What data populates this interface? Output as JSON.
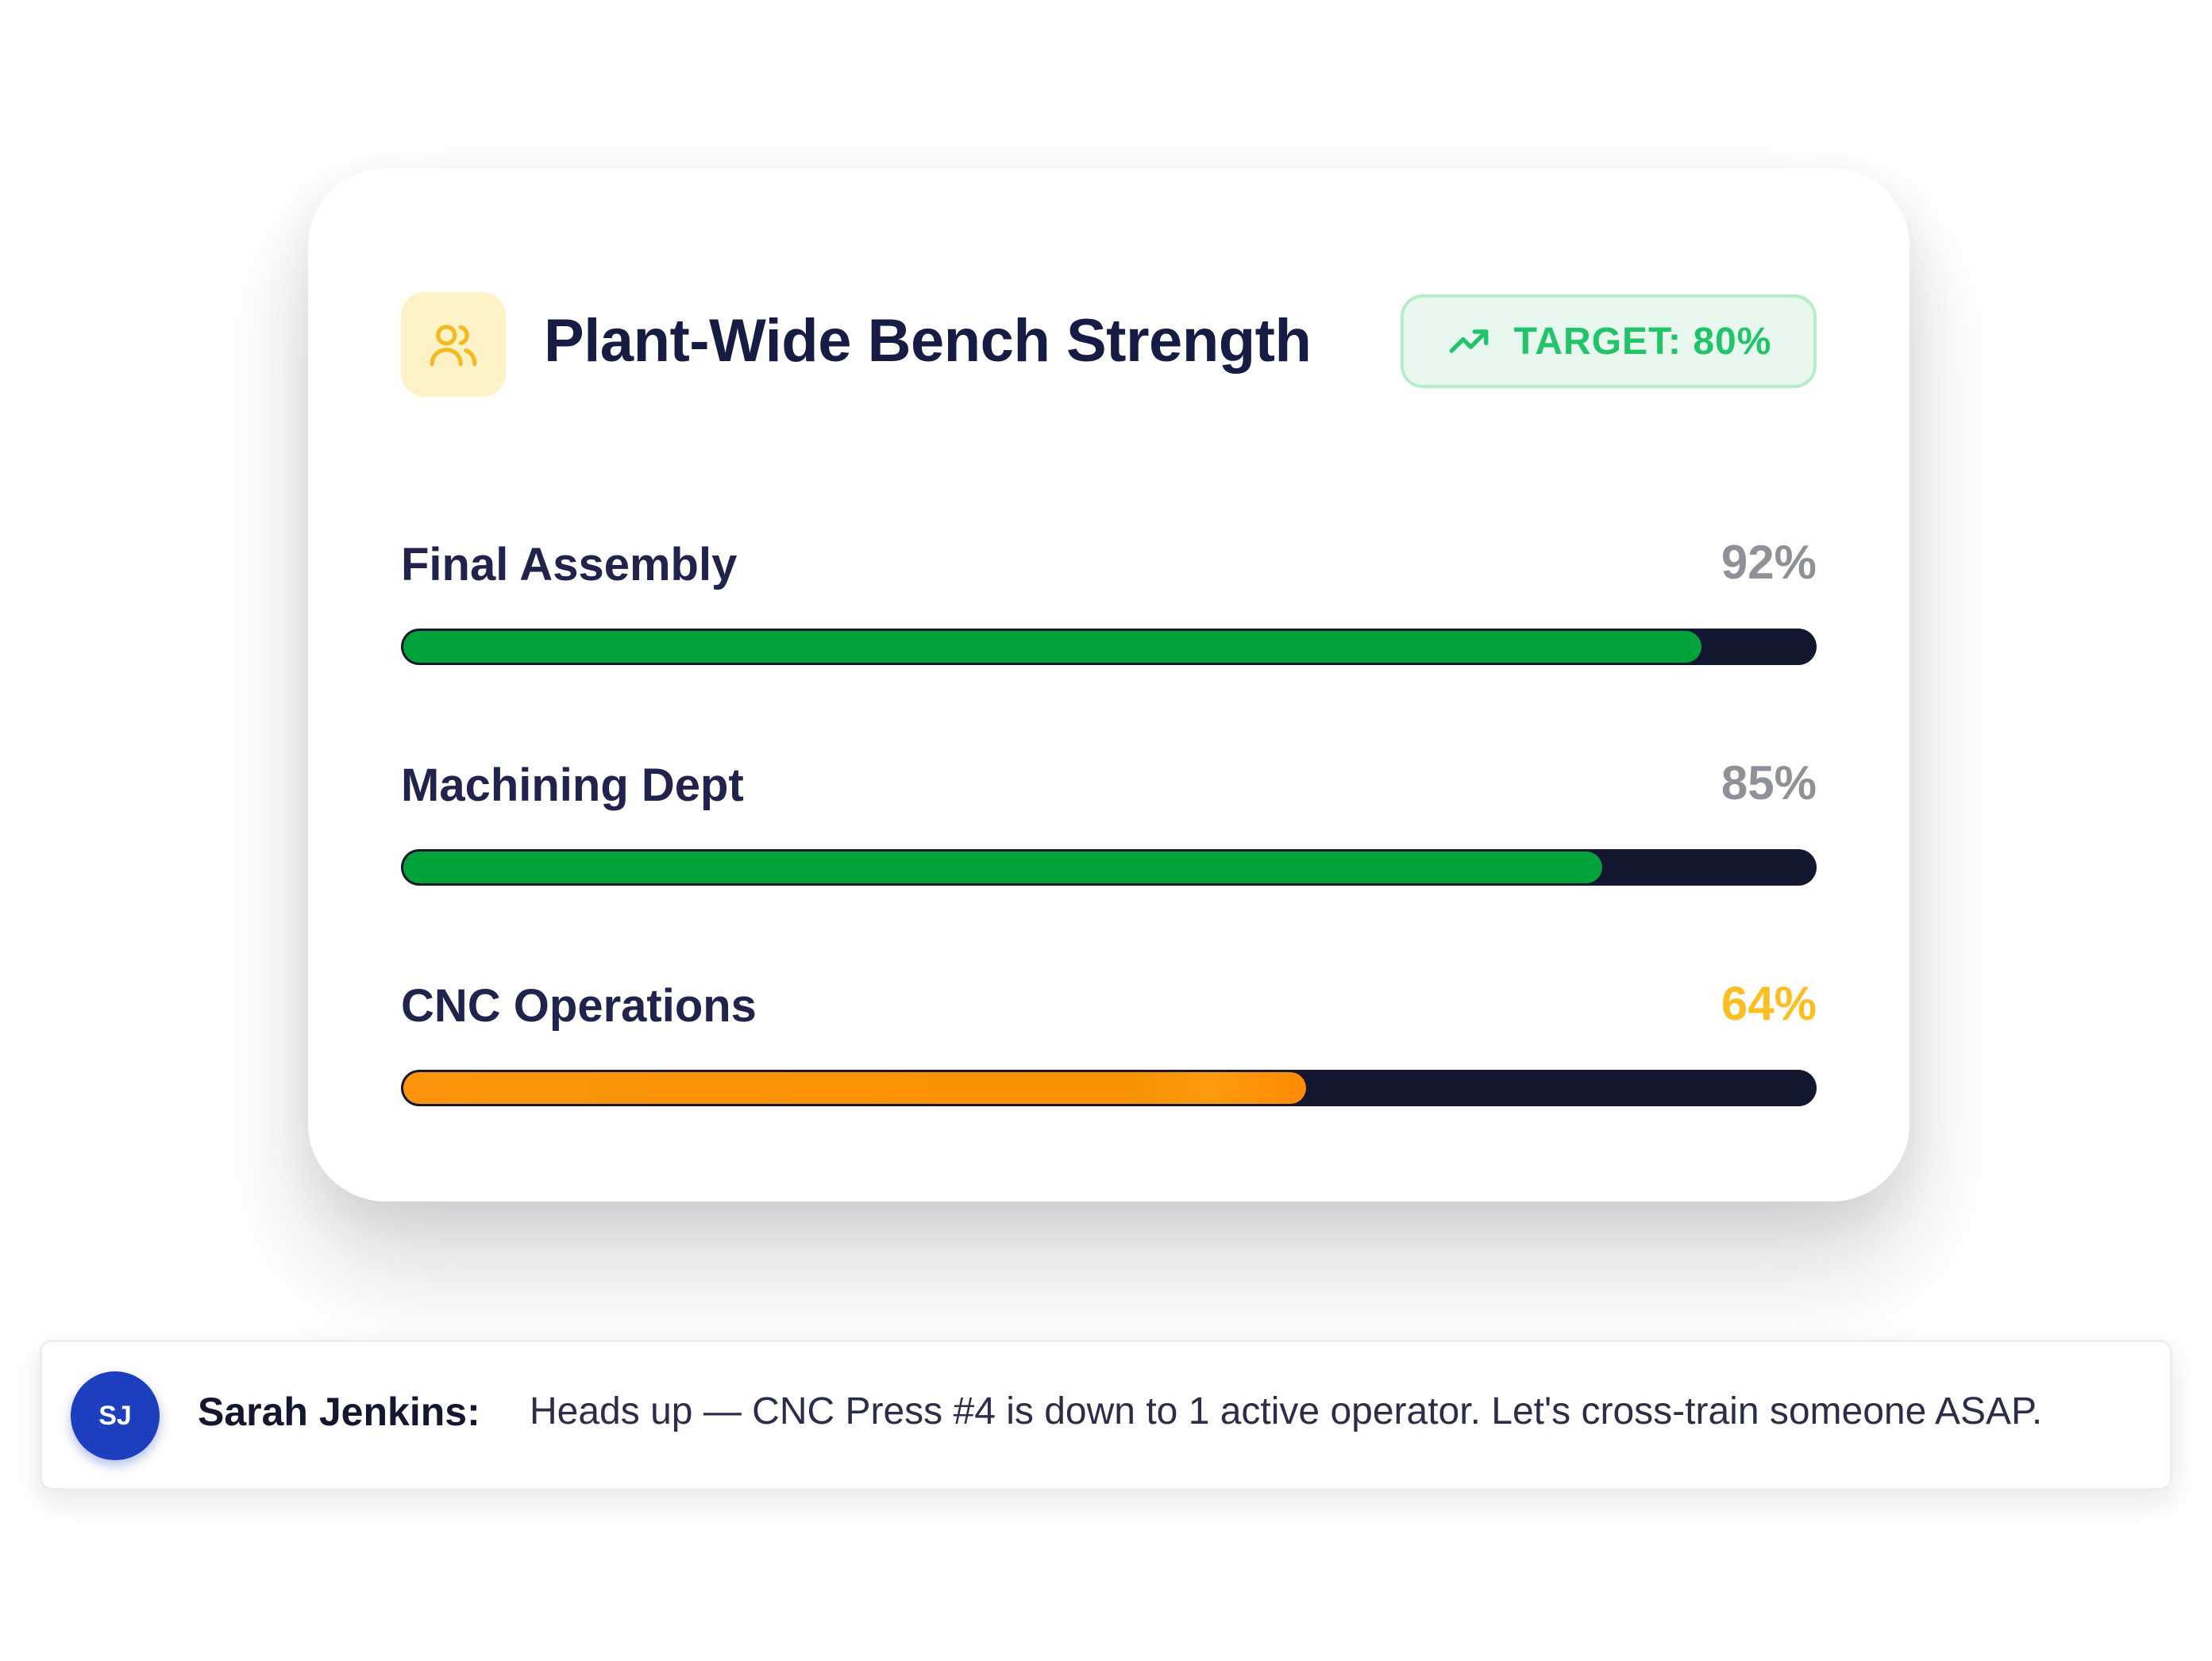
{
  "card": {
    "title": "Plant-Wide Bench Strength",
    "icon": "users-icon",
    "target_badge": {
      "icon": "trending-up-icon",
      "label": "TARGET: 80%"
    },
    "metrics": [
      {
        "label": "Final Assembly",
        "value_text": "92%",
        "progress": 0.92,
        "color": "#03a33c"
      },
      {
        "label": "Machining Dept",
        "value_text": "85%",
        "progress": 0.85,
        "color": "#03a33c"
      },
      {
        "label": "CNC Operations",
        "value_text": "64%",
        "progress": 0.64,
        "color": "#fb940a"
      }
    ]
  },
  "message": {
    "avatar_initials": "SJ",
    "sender": "Sarah Jenkins:",
    "text": "Heads up — CNC Press #4 is down to 1 active operator. Let's cross-train someone ASAP."
  },
  "colors": {
    "title": "#171c44",
    "progress_ok": "#03a33c",
    "progress_warn": "#fb940a",
    "track": "#141730",
    "badge_text": "#22c46a",
    "badge_bg": "#e8f8ee",
    "warn_value": "#fbbf24",
    "avatar_bg": "#1d3fbf"
  }
}
